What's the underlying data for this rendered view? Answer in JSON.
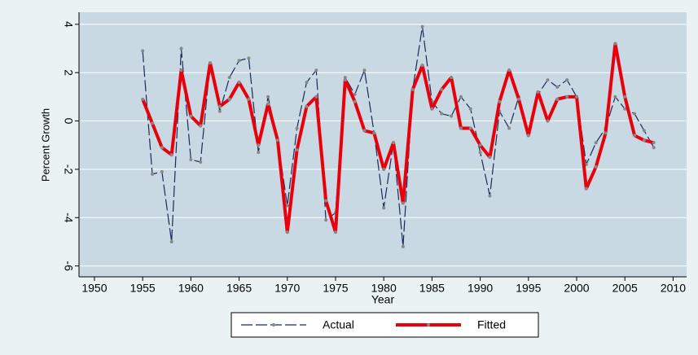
{
  "chart_data": {
    "type": "line",
    "x_label": "Year",
    "y_label": "Percent Growth",
    "x": [
      1955,
      1956,
      1957,
      1958,
      1959,
      1960,
      1961,
      1962,
      1963,
      1964,
      1965,
      1966,
      1967,
      1968,
      1969,
      1970,
      1971,
      1972,
      1973,
      1974,
      1975,
      1976,
      1977,
      1978,
      1979,
      1980,
      1981,
      1982,
      1983,
      1984,
      1985,
      1986,
      1987,
      1988,
      1989,
      1990,
      1991,
      1992,
      1993,
      1994,
      1995,
      1996,
      1997,
      1998,
      1999,
      2000,
      2001,
      2002,
      2003,
      2004,
      2005,
      2006,
      2007,
      2008
    ],
    "series": [
      {
        "name": "Actual",
        "color": "#1a2a5a",
        "dashed": true,
        "values": [
          2.9,
          -2.2,
          -2.1,
          -5.0,
          3.0,
          -1.6,
          -1.7,
          2.4,
          0.4,
          1.8,
          2.5,
          2.6,
          -1.3,
          1.0,
          -0.8,
          -3.5,
          -0.3,
          1.6,
          2.1,
          -4.1,
          -3.8,
          1.8,
          1.1,
          2.1,
          -0.5,
          -3.6,
          -0.9,
          -5.2,
          1.3,
          3.9,
          0.8,
          0.3,
          0.2,
          1.0,
          0.5,
          -1.3,
          -3.1,
          0.4,
          -0.3,
          1.0,
          -0.6,
          1.1,
          1.7,
          1.4,
          1.7,
          1.0,
          -1.8,
          -0.9,
          -0.3,
          1.0,
          0.5,
          0.3,
          -0.4,
          -1.1
        ]
      },
      {
        "name": "Fitted",
        "color": "#e8000b",
        "dashed": false,
        "values": [
          0.9,
          -0.1,
          -1.1,
          -1.4,
          2.1,
          0.2,
          -0.2,
          2.4,
          0.6,
          0.9,
          1.6,
          0.9,
          -1.0,
          0.7,
          -0.8,
          -4.6,
          -1.2,
          0.6,
          1.0,
          -3.3,
          -4.6,
          1.7,
          0.8,
          -0.4,
          -0.5,
          -2.0,
          -0.9,
          -3.4,
          1.3,
          2.3,
          0.5,
          1.3,
          1.8,
          -0.3,
          -0.3,
          -1.0,
          -1.5,
          0.8,
          2.1,
          0.9,
          -0.6,
          1.2,
          0.0,
          0.9,
          1.0,
          1.0,
          -2.8,
          -1.9,
          -0.5,
          3.2,
          1.0,
          -0.6,
          -0.8,
          -0.9
        ]
      }
    ],
    "xlim": [
      1948.4,
      2011.4
    ],
    "xticks": [
      1950,
      1955,
      1960,
      1965,
      1970,
      1975,
      1980,
      1985,
      1990,
      1995,
      2000,
      2005,
      2010
    ],
    "ylim": [
      -6.45,
      4.5
    ],
    "yticks": [
      -6,
      -4,
      -2,
      0,
      2,
      4
    ],
    "grid": true,
    "legend": "bottom"
  }
}
